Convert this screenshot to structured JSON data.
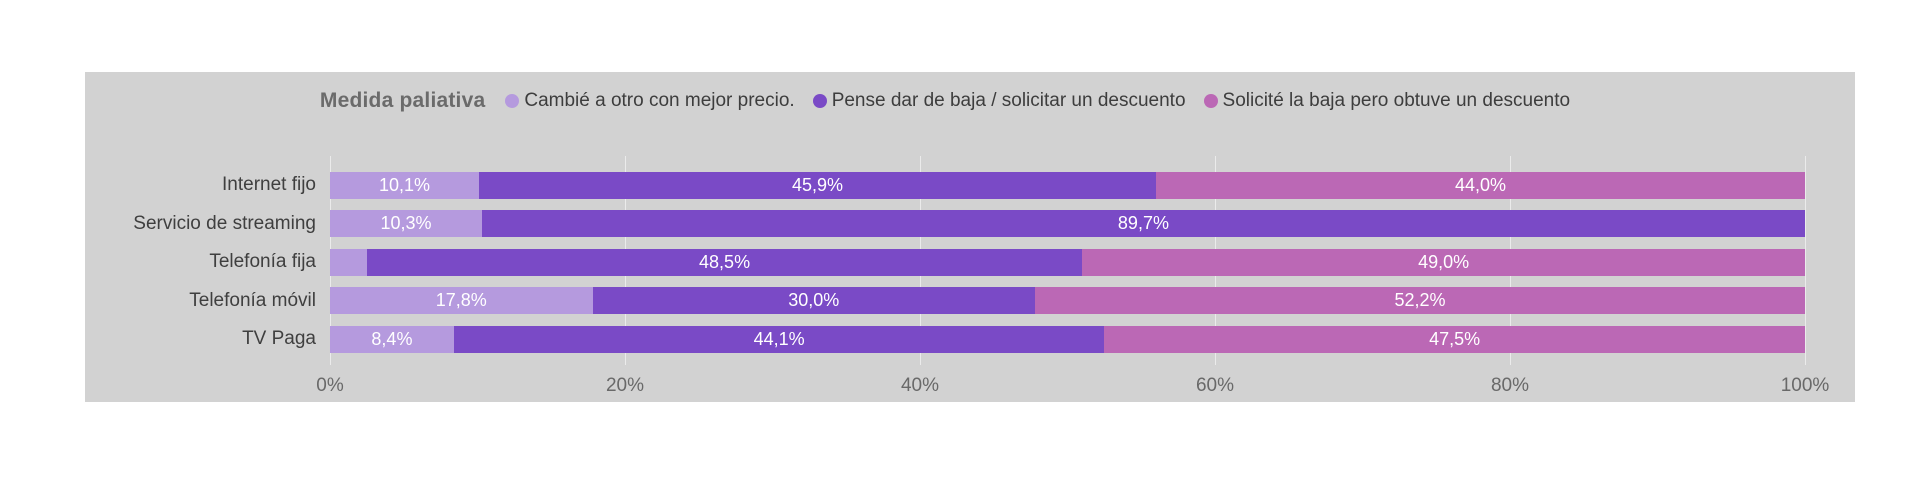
{
  "chart_data": {
    "type": "bar",
    "orientation": "horizontal",
    "stacked": true,
    "percent_stacked": true,
    "title": "Medida paliativa",
    "legend_position": "top",
    "grid": true,
    "categories": [
      "Internet fijo",
      "Servicio de streaming",
      "Telefonía fija",
      "Telefonía móvil",
      "TV Paga"
    ],
    "series": [
      {
        "name": "Cambié a otro con mejor precio.",
        "color": "#b59ade",
        "values": [
          10.1,
          10.3,
          2.5,
          17.8,
          8.4
        ],
        "labels": [
          "10,1%",
          "10,3%",
          "",
          "17,8%",
          "8,4%"
        ]
      },
      {
        "name": "Pense dar de baja / solicitar un descuento",
        "color": "#7a4ac6",
        "values": [
          45.9,
          89.7,
          48.5,
          30.0,
          44.1
        ],
        "labels": [
          "45,9%",
          "89,7%",
          "48,5%",
          "30,0%",
          "44,1%"
        ]
      },
      {
        "name": "Solicité la baja pero obtuve un descuento",
        "color": "#bb68b5",
        "values": [
          44.0,
          0,
          49.0,
          52.2,
          47.5
        ],
        "labels": [
          "44,0%",
          "",
          "49,0%",
          "52,2%",
          "47,5%"
        ]
      }
    ],
    "x_ticks": [
      "0%",
      "20%",
      "40%",
      "60%",
      "80%",
      "100%"
    ],
    "xlim": [
      0,
      100
    ],
    "xlabel": "",
    "ylabel": ""
  },
  "colors": {
    "panel_background": "#d2d2d2",
    "bar_value_text": "#ffffff",
    "axis_text": "#696969",
    "label_text": "#3f3f3f",
    "title_text": "#6b6b6b"
  }
}
